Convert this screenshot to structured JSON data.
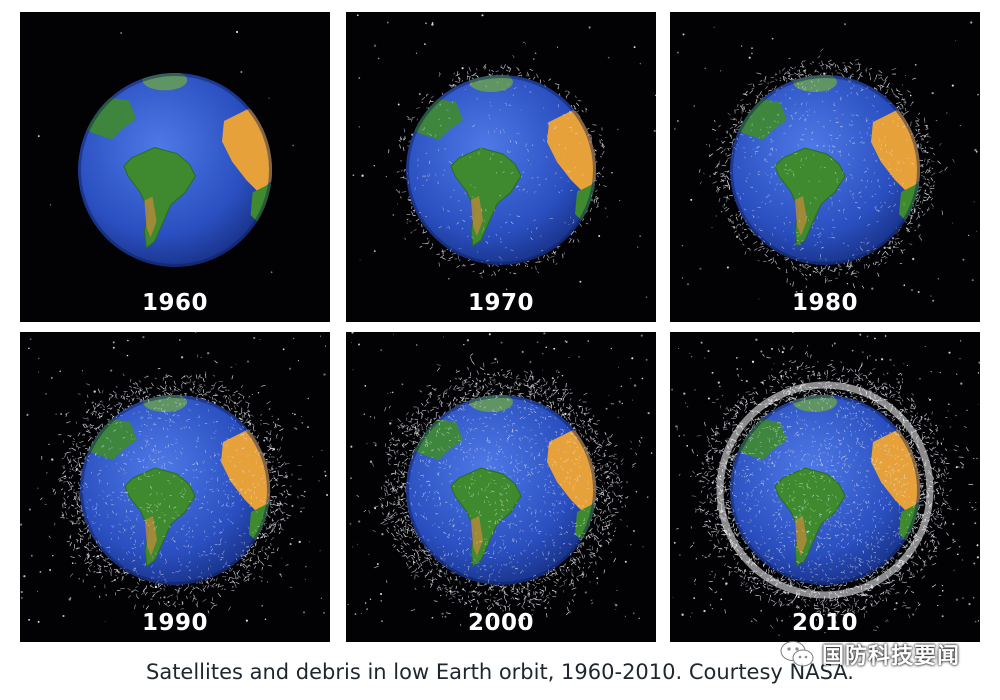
{
  "panels": [
    {
      "year": "1960",
      "debris_level": 0
    },
    {
      "year": "1970",
      "debris_level": 1
    },
    {
      "year": "1980",
      "debris_level": 2
    },
    {
      "year": "1990",
      "debris_level": 3
    },
    {
      "year": "2000",
      "debris_level": 4
    },
    {
      "year": "2010",
      "debris_level": 5
    }
  ],
  "caption": "Satellites and debris in low Earth orbit, 1960-2010.  Courtesy NASA.",
  "watermark": {
    "text": "国防科技要闻",
    "icon": "wechat-icon"
  },
  "colors": {
    "space": "#020205",
    "ocean": "#2a4fc0",
    "land": "#3f8a2e",
    "desert": "#e6a13a",
    "debris": "#e8ecf2"
  }
}
